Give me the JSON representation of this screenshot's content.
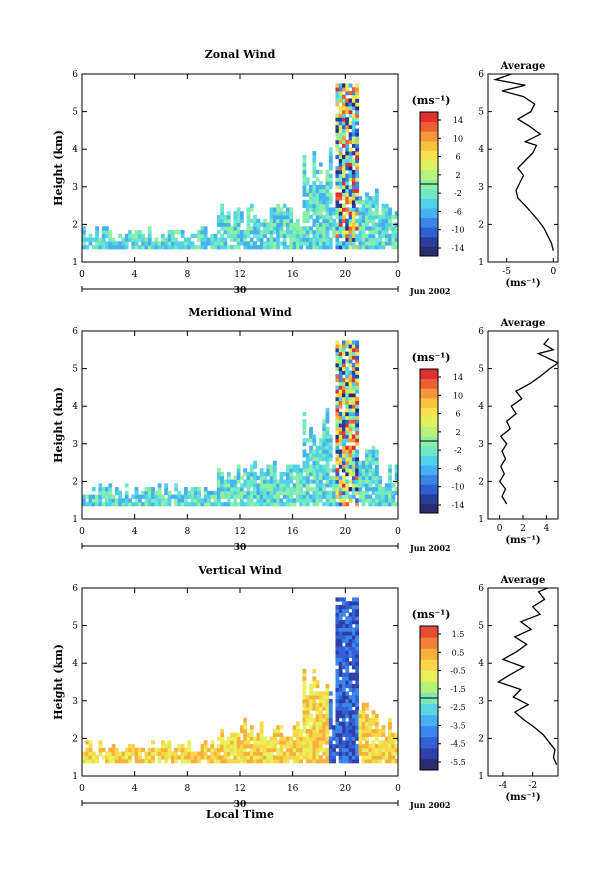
{
  "figure": {
    "date_label": "Jun 2002",
    "day_label": "30",
    "x_axis_title": "Local Time",
    "x_ticks": [
      "0",
      "4",
      "8",
      "12",
      "16",
      "20",
      "0"
    ],
    "y_axis_title": "Height (km)",
    "y_ticks": [
      "1",
      "2",
      "3",
      "4",
      "5",
      "6"
    ],
    "colorbar_unit": "(ms⁻¹)",
    "profile_title": "Average",
    "profile_unit": "(ms⁻¹)"
  },
  "chart_data": [
    {
      "type": "heatmap",
      "title": "Zonal Wind",
      "xlabel": "",
      "ylabel": "Height (km)",
      "xlim": [
        0,
        24
      ],
      "ylim": [
        1,
        6
      ],
      "colorbar_ticks": [
        "14",
        "10",
        "6",
        "2",
        "-2",
        "-6",
        "-10",
        "-14"
      ],
      "colorbar_range": [
        -16,
        16
      ],
      "profile": {
        "title": "Average",
        "xlabel": "(ms⁻¹)",
        "xlim": [
          -7,
          0.5
        ],
        "x_ticks": [
          "-5",
          "0"
        ],
        "x_tick_values": [
          -5,
          0
        ],
        "points": [
          [
            0.0,
            1.3
          ],
          [
            -0.2,
            1.5
          ],
          [
            -0.6,
            1.7
          ],
          [
            -1.0,
            1.9
          ],
          [
            -1.6,
            2.1
          ],
          [
            -2.3,
            2.3
          ],
          [
            -3.0,
            2.5
          ],
          [
            -3.8,
            2.7
          ],
          [
            -4.0,
            2.9
          ],
          [
            -3.6,
            3.1
          ],
          [
            -3.2,
            3.3
          ],
          [
            -3.8,
            3.5
          ],
          [
            -3.0,
            3.7
          ],
          [
            -2.2,
            3.9
          ],
          [
            -1.8,
            4.1
          ],
          [
            -3.0,
            4.2
          ],
          [
            -1.4,
            4.4
          ],
          [
            -2.5,
            4.6
          ],
          [
            -3.8,
            4.8
          ],
          [
            -2.4,
            5.0
          ],
          [
            -2.0,
            5.2
          ],
          [
            -3.2,
            5.4
          ],
          [
            -5.5,
            5.55
          ],
          [
            -3.0,
            5.7
          ],
          [
            -6.2,
            5.85
          ],
          [
            -4.5,
            6.0
          ]
        ]
      }
    },
    {
      "type": "heatmap",
      "title": "Meridional Wind",
      "xlabel": "",
      "ylabel": "Height (km)",
      "xlim": [
        0,
        24
      ],
      "ylim": [
        1,
        6
      ],
      "colorbar_ticks": [
        "14",
        "10",
        "6",
        "2",
        "-2",
        "-6",
        "-10",
        "-14"
      ],
      "colorbar_range": [
        -16,
        16
      ],
      "profile": {
        "title": "Average",
        "xlabel": "(ms⁻¹)",
        "xlim": [
          -1,
          5
        ],
        "x_ticks": [
          "0",
          "2",
          "4"
        ],
        "x_tick_values": [
          0,
          2,
          4
        ],
        "points": [
          [
            0.6,
            1.4
          ],
          [
            0.2,
            1.6
          ],
          [
            0.5,
            1.8
          ],
          [
            0.0,
            2.0
          ],
          [
            0.4,
            2.2
          ],
          [
            0.1,
            2.4
          ],
          [
            0.5,
            2.6
          ],
          [
            0.2,
            2.8
          ],
          [
            0.6,
            3.0
          ],
          [
            0.1,
            3.2
          ],
          [
            0.9,
            3.4
          ],
          [
            0.6,
            3.6
          ],
          [
            1.4,
            3.8
          ],
          [
            1.0,
            4.0
          ],
          [
            1.9,
            4.2
          ],
          [
            1.4,
            4.4
          ],
          [
            2.6,
            4.6
          ],
          [
            3.5,
            4.8
          ],
          [
            4.3,
            5.0
          ],
          [
            5.0,
            5.15
          ],
          [
            4.0,
            5.3
          ],
          [
            3.3,
            5.4
          ],
          [
            4.6,
            5.5
          ],
          [
            3.8,
            5.65
          ],
          [
            4.2,
            5.8
          ]
        ]
      }
    },
    {
      "type": "heatmap",
      "title": "Vertical Wind",
      "xlabel": "Local Time",
      "ylabel": "Height (km)",
      "xlim": [
        0,
        24
      ],
      "ylim": [
        1,
        6
      ],
      "colorbar_ticks": [
        "1.5",
        "0.5",
        "-0.5",
        "-1.5",
        "-2.5",
        "-3.5",
        "-4.5",
        "-5.5"
      ],
      "colorbar_range": [
        -6,
        2
      ],
      "profile": {
        "title": "Average",
        "xlabel": "(ms⁻¹)",
        "xlim": [
          -5,
          -0.3
        ],
        "x_ticks": [
          "-4",
          "-2"
        ],
        "x_tick_values": [
          -4,
          -2
        ],
        "points": [
          [
            -0.4,
            1.3
          ],
          [
            -0.6,
            1.5
          ],
          [
            -0.5,
            1.7
          ],
          [
            -0.9,
            1.9
          ],
          [
            -1.3,
            2.1
          ],
          [
            -1.9,
            2.3
          ],
          [
            -2.6,
            2.5
          ],
          [
            -3.2,
            2.7
          ],
          [
            -2.3,
            2.9
          ],
          [
            -3.3,
            3.1
          ],
          [
            -2.8,
            3.3
          ],
          [
            -4.3,
            3.5
          ],
          [
            -3.5,
            3.7
          ],
          [
            -2.6,
            3.9
          ],
          [
            -4.0,
            4.1
          ],
          [
            -3.1,
            4.3
          ],
          [
            -2.4,
            4.5
          ],
          [
            -3.2,
            4.7
          ],
          [
            -2.1,
            4.9
          ],
          [
            -2.8,
            5.1
          ],
          [
            -1.5,
            5.3
          ],
          [
            -2.0,
            5.5
          ],
          [
            -1.2,
            5.7
          ],
          [
            -1.6,
            5.9
          ],
          [
            -1.0,
            6.0
          ]
        ]
      }
    }
  ]
}
